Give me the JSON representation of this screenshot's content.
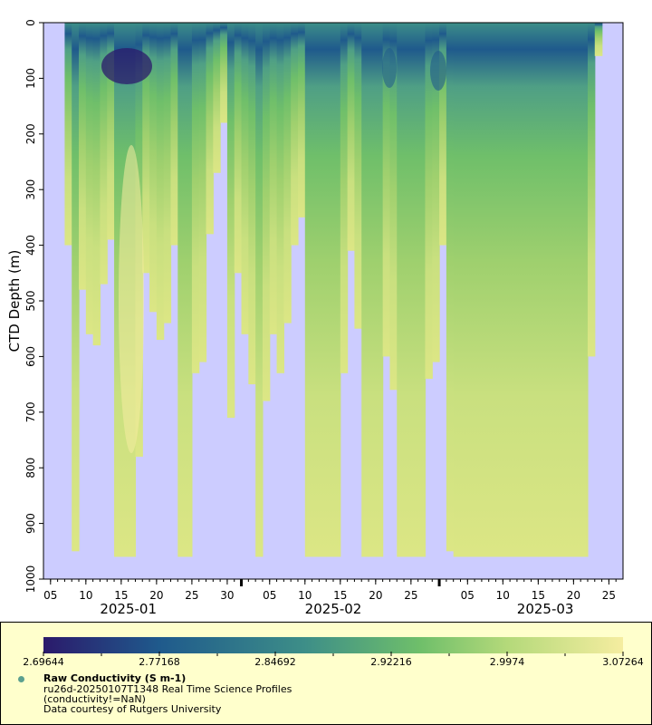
{
  "chart_data": {
    "type": "heatmap",
    "title": "",
    "ylabel": "CTD Depth (m)",
    "xlabel": "",
    "ylim": [
      1000,
      0
    ],
    "y_ticks": [
      "0",
      "100",
      "200",
      "300",
      "400",
      "500",
      "600",
      "700",
      "800",
      "900",
      "1000"
    ],
    "x_range": [
      "2025-01-04",
      "2025-03-27"
    ],
    "x_day_ticks": [
      "05",
      "10",
      "15",
      "20",
      "25",
      "30",
      "05",
      "10",
      "15",
      "20",
      "25",
      "05",
      "10",
      "15",
      "20",
      "25"
    ],
    "x_month_labels": [
      "2025-01",
      "2025-02",
      "2025-03"
    ],
    "background_color": "#ccccff",
    "colormap_stops": [
      "#2b1a6b",
      "#1f5a8c",
      "#3d8e88",
      "#6fbf6a",
      "#b4d97a",
      "#f5eda0"
    ],
    "colorbar": {
      "min": 2.69644,
      "max": 3.07264,
      "ticks": [
        "2.69644",
        "2.77168",
        "2.84692",
        "2.92216",
        "2.9974",
        "3.07264"
      ]
    },
    "profiles": [
      {
        "date": "2025-01-07",
        "max_depth": 400
      },
      {
        "date": "2025-01-08",
        "max_depth": 950
      },
      {
        "date": "2025-01-09",
        "max_depth": 480
      },
      {
        "date": "2025-01-10",
        "max_depth": 560
      },
      {
        "date": "2025-01-11",
        "max_depth": 580
      },
      {
        "date": "2025-01-12",
        "max_depth": 470
      },
      {
        "date": "2025-01-13",
        "max_depth": 390
      },
      {
        "date": "2025-01-14",
        "max_depth": 960
      },
      {
        "date": "2025-01-15",
        "max_depth": 960
      },
      {
        "date": "2025-01-16",
        "max_depth": 960
      },
      {
        "date": "2025-01-17",
        "max_depth": 780
      },
      {
        "date": "2025-01-18",
        "max_depth": 450
      },
      {
        "date": "2025-01-19",
        "max_depth": 520
      },
      {
        "date": "2025-01-20",
        "max_depth": 570
      },
      {
        "date": "2025-01-21",
        "max_depth": 540
      },
      {
        "date": "2025-01-22",
        "max_depth": 400
      },
      {
        "date": "2025-01-23",
        "max_depth": 960
      },
      {
        "date": "2025-01-24",
        "max_depth": 960
      },
      {
        "date": "2025-01-25",
        "max_depth": 630
      },
      {
        "date": "2025-01-26",
        "max_depth": 610
      },
      {
        "date": "2025-01-27",
        "max_depth": 380
      },
      {
        "date": "2025-01-28",
        "max_depth": 270
      },
      {
        "date": "2025-01-29",
        "max_depth": 180
      },
      {
        "date": "2025-01-30",
        "max_depth": 710
      },
      {
        "date": "2025-01-31",
        "max_depth": 450
      },
      {
        "date": "2025-02-01",
        "max_depth": 560
      },
      {
        "date": "2025-02-02",
        "max_depth": 650
      },
      {
        "date": "2025-02-03",
        "max_depth": 960
      },
      {
        "date": "2025-02-04",
        "max_depth": 680
      },
      {
        "date": "2025-02-05",
        "max_depth": 560
      },
      {
        "date": "2025-02-06",
        "max_depth": 630
      },
      {
        "date": "2025-02-07",
        "max_depth": 540
      },
      {
        "date": "2025-02-08",
        "max_depth": 400
      },
      {
        "date": "2025-02-09",
        "max_depth": 350
      },
      {
        "date": "2025-02-10",
        "max_depth": 960
      },
      {
        "date": "2025-02-11",
        "max_depth": 960
      },
      {
        "date": "2025-02-12",
        "max_depth": 960
      },
      {
        "date": "2025-02-13",
        "max_depth": 960
      },
      {
        "date": "2025-02-14",
        "max_depth": 960
      },
      {
        "date": "2025-02-15",
        "max_depth": 630
      },
      {
        "date": "2025-02-16",
        "max_depth": 410
      },
      {
        "date": "2025-02-17",
        "max_depth": 550
      },
      {
        "date": "2025-02-18",
        "max_depth": 960
      },
      {
        "date": "2025-02-19",
        "max_depth": 960
      },
      {
        "date": "2025-02-20",
        "max_depth": 960
      },
      {
        "date": "2025-02-21",
        "max_depth": 600
      },
      {
        "date": "2025-02-22",
        "max_depth": 660
      },
      {
        "date": "2025-02-23",
        "max_depth": 960
      },
      {
        "date": "2025-02-24",
        "max_depth": 960
      },
      {
        "date": "2025-02-25",
        "max_depth": 960
      },
      {
        "date": "2025-02-26",
        "max_depth": 960
      },
      {
        "date": "2025-02-27",
        "max_depth": 640
      },
      {
        "date": "2025-02-28",
        "max_depth": 610
      },
      {
        "date": "2025-03-01",
        "max_depth": 400
      },
      {
        "date": "2025-03-02",
        "max_depth": 950
      },
      {
        "date": "2025-03-03",
        "max_depth": 960
      },
      {
        "date": "2025-03-05",
        "max_depth": 960
      },
      {
        "date": "2025-03-10",
        "max_depth": 960
      },
      {
        "date": "2025-03-15",
        "max_depth": 960
      },
      {
        "date": "2025-03-20",
        "max_depth": 960
      },
      {
        "date": "2025-03-22",
        "max_depth": 600
      },
      {
        "date": "2025-03-23",
        "max_depth": 60
      }
    ]
  },
  "legend": {
    "title": "Raw Conductivity (S m-1)",
    "line2": "ru26d-20250107T1348 Real Time Science Profiles",
    "line3": "(conductivity!=NaN)",
    "line4": "Data courtesy of Rutgers University"
  }
}
